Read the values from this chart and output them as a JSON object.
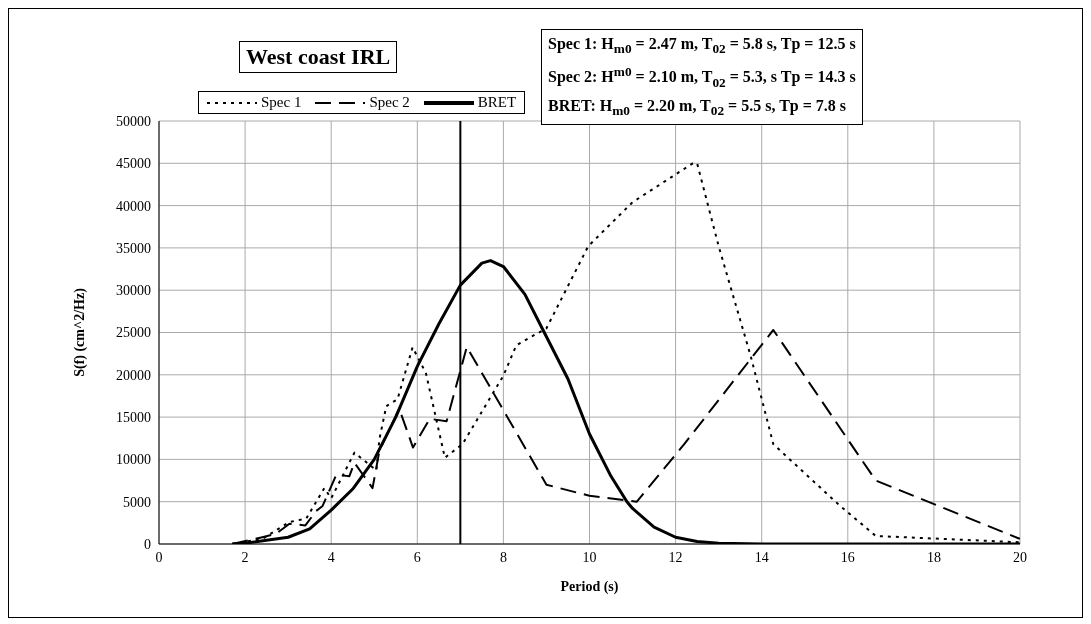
{
  "chart_data": {
    "type": "line",
    "title": "West coast IRL",
    "xlabel": "Period (s)",
    "ylabel": "S(f) (cm^2/Hz)",
    "annotations": [
      "Spec 1: H$_{m0}$ = 2.47 m, T$_{02}$ = 5.8 s, Tp = 12.5 s",
      "Spec 2: H$^{m0}$ = 2.10 m, T$_{02}$ = 5.3, s Tp = 14.3 s",
      "BRET: H$_{m0}$ = 2.20 m, T$_{02}$ = 5.5 s, Tp = 7.8 s"
    ],
    "xlim": [
      0,
      20
    ],
    "xticks": [
      0,
      2,
      4,
      6,
      8,
      10,
      12,
      14,
      16,
      18,
      20
    ],
    "ylim": [
      0,
      50000
    ],
    "yticks": [
      0,
      5000,
      10000,
      15000,
      20000,
      25000,
      30000,
      35000,
      40000,
      45000,
      50000
    ],
    "grid": true,
    "legend": "top",
    "marker": "none",
    "ref_lines": [
      {
        "axis": "x",
        "value": 7,
        "color": "#000000"
      }
    ],
    "series": [
      {
        "name": "Spec 1",
        "color": "#000000",
        "line_style": "dotted",
        "x": [
          1.7,
          2.4,
          3.03,
          3.42,
          3.84,
          4.0,
          4.54,
          5.05,
          5.12,
          5.28,
          5.54,
          5.89,
          6.2,
          6.64,
          7.05,
          8.0,
          8.3,
          9.0,
          9.97,
          11.0,
          12.4,
          12.5,
          13.0,
          13.74,
          14.27,
          15.8,
          16.65,
          20
        ],
        "values": [
          0,
          600,
          2600,
          3000,
          6600,
          5400,
          10800,
          8700,
          12400,
          16300,
          17100,
          23250,
          20200,
          10200,
          11800,
          19900,
          23500,
          25500,
          35200,
          40400,
          45000,
          45000,
          35200,
          22300,
          11800,
          4600,
          950,
          200
        ]
      },
      {
        "name": "Spec 2",
        "color": "#000000",
        "line_style": "dashed",
        "x": [
          1.7,
          2.4,
          2.72,
          3.03,
          3.4,
          3.65,
          3.8,
          4.12,
          4.42,
          4.54,
          4.96,
          5.12,
          5.58,
          5.9,
          6.29,
          6.68,
          7.15,
          9.0,
          10.0,
          11.1,
          12.2,
          14.27,
          16.65,
          20
        ],
        "values": [
          0,
          800,
          1200,
          2400,
          2200,
          3900,
          4500,
          8200,
          8000,
          9600,
          6600,
          11000,
          16000,
          11400,
          14800,
          14500,
          23300,
          7000,
          5700,
          5000,
          11800,
          25300,
          7500,
          600
        ]
      },
      {
        "name": "BRET",
        "color": "#000000",
        "line_style": "solid",
        "x": [
          1.7,
          2,
          3,
          3.5,
          4,
          4.5,
          5,
          5.5,
          6,
          6.5,
          7,
          7.5,
          7.7,
          8,
          8.5,
          9,
          9.5,
          10,
          10.5,
          10.87,
          11,
          11.5,
          12,
          12.5,
          13,
          14,
          20
        ],
        "values": [
          0,
          100,
          800,
          1800,
          4000,
          6500,
          10000,
          15000,
          21000,
          26000,
          30600,
          33200,
          33500,
          32800,
          29500,
          24500,
          19500,
          13000,
          8000,
          5000,
          4200,
          2000,
          800,
          300,
          100,
          0,
          0
        ]
      }
    ]
  }
}
